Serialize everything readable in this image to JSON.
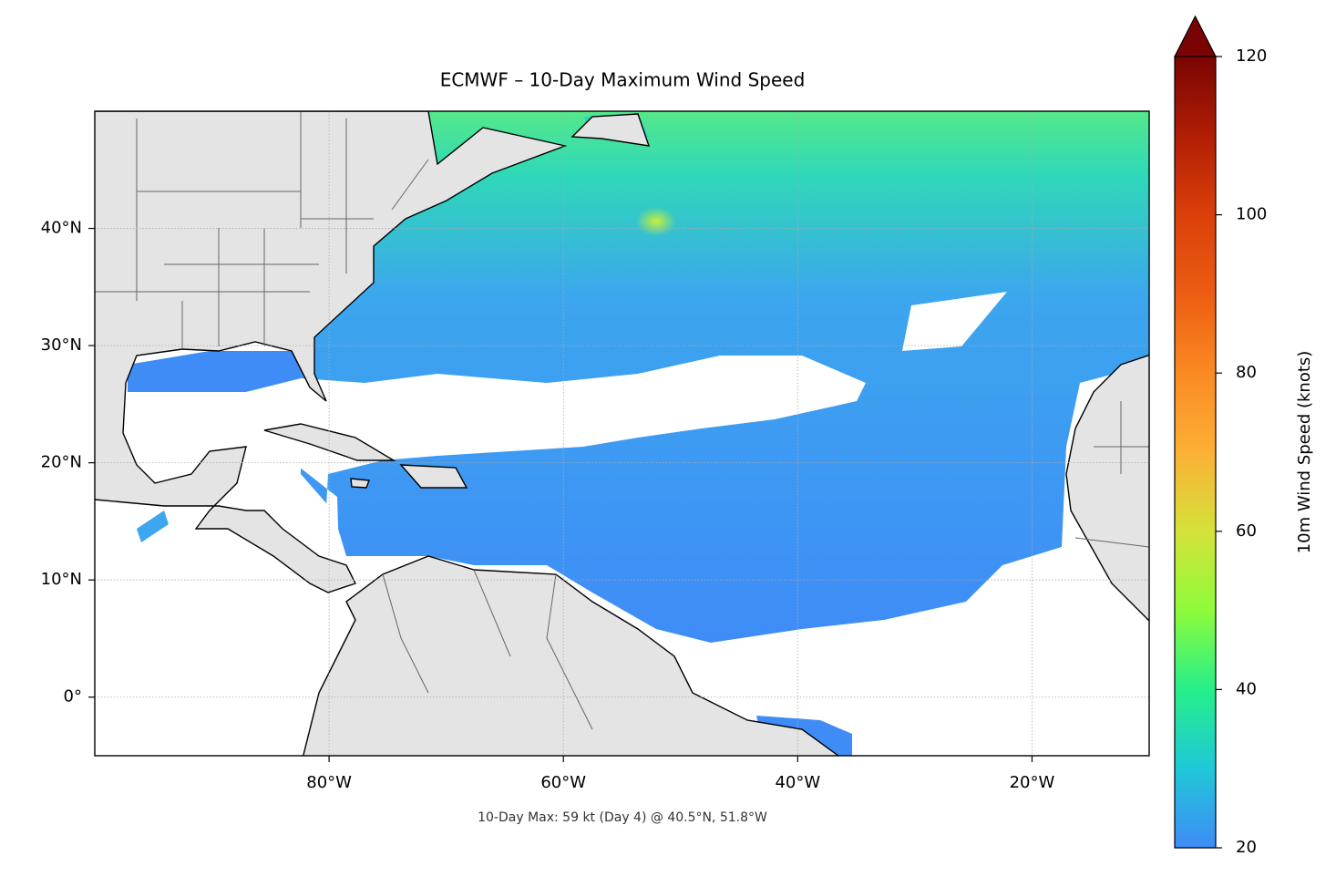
{
  "chart_data": {
    "type": "map",
    "title": "ECMWF – 10-Day Maximum Wind Speed",
    "annotation": "10-Day Max: 59 kt (Day 4) @ 40.5°N, 51.8°W",
    "xlim": [
      -100,
      -10
    ],
    "ylim": [
      -5,
      50
    ],
    "xticks": [
      {
        "value": -80,
        "label": "80°W"
      },
      {
        "value": -60,
        "label": "60°W"
      },
      {
        "value": -40,
        "label": "40°W"
      },
      {
        "value": -20,
        "label": "20°W"
      }
    ],
    "yticks": [
      {
        "value": 0,
        "label": "0°"
      },
      {
        "value": 10,
        "label": "10°N"
      },
      {
        "value": 20,
        "label": "20°N"
      },
      {
        "value": 30,
        "label": "30°N"
      },
      {
        "value": 40,
        "label": "40°N"
      }
    ],
    "grid": true,
    "colorbar": {
      "label": "10m Wind Speed (knots)",
      "lim": [
        20,
        120
      ],
      "ticks": [
        20,
        40,
        60,
        80,
        100,
        120
      ],
      "colors": [
        "#3f8cf7",
        "#1fc8d8",
        "#25ef8a",
        "#8efc3b",
        "#d5e23a",
        "#fcb035",
        "#fb8a22",
        "#ec5d12",
        "#db3f0a",
        "#b01e04",
        "#7a0403"
      ],
      "extend": "max"
    }
  }
}
